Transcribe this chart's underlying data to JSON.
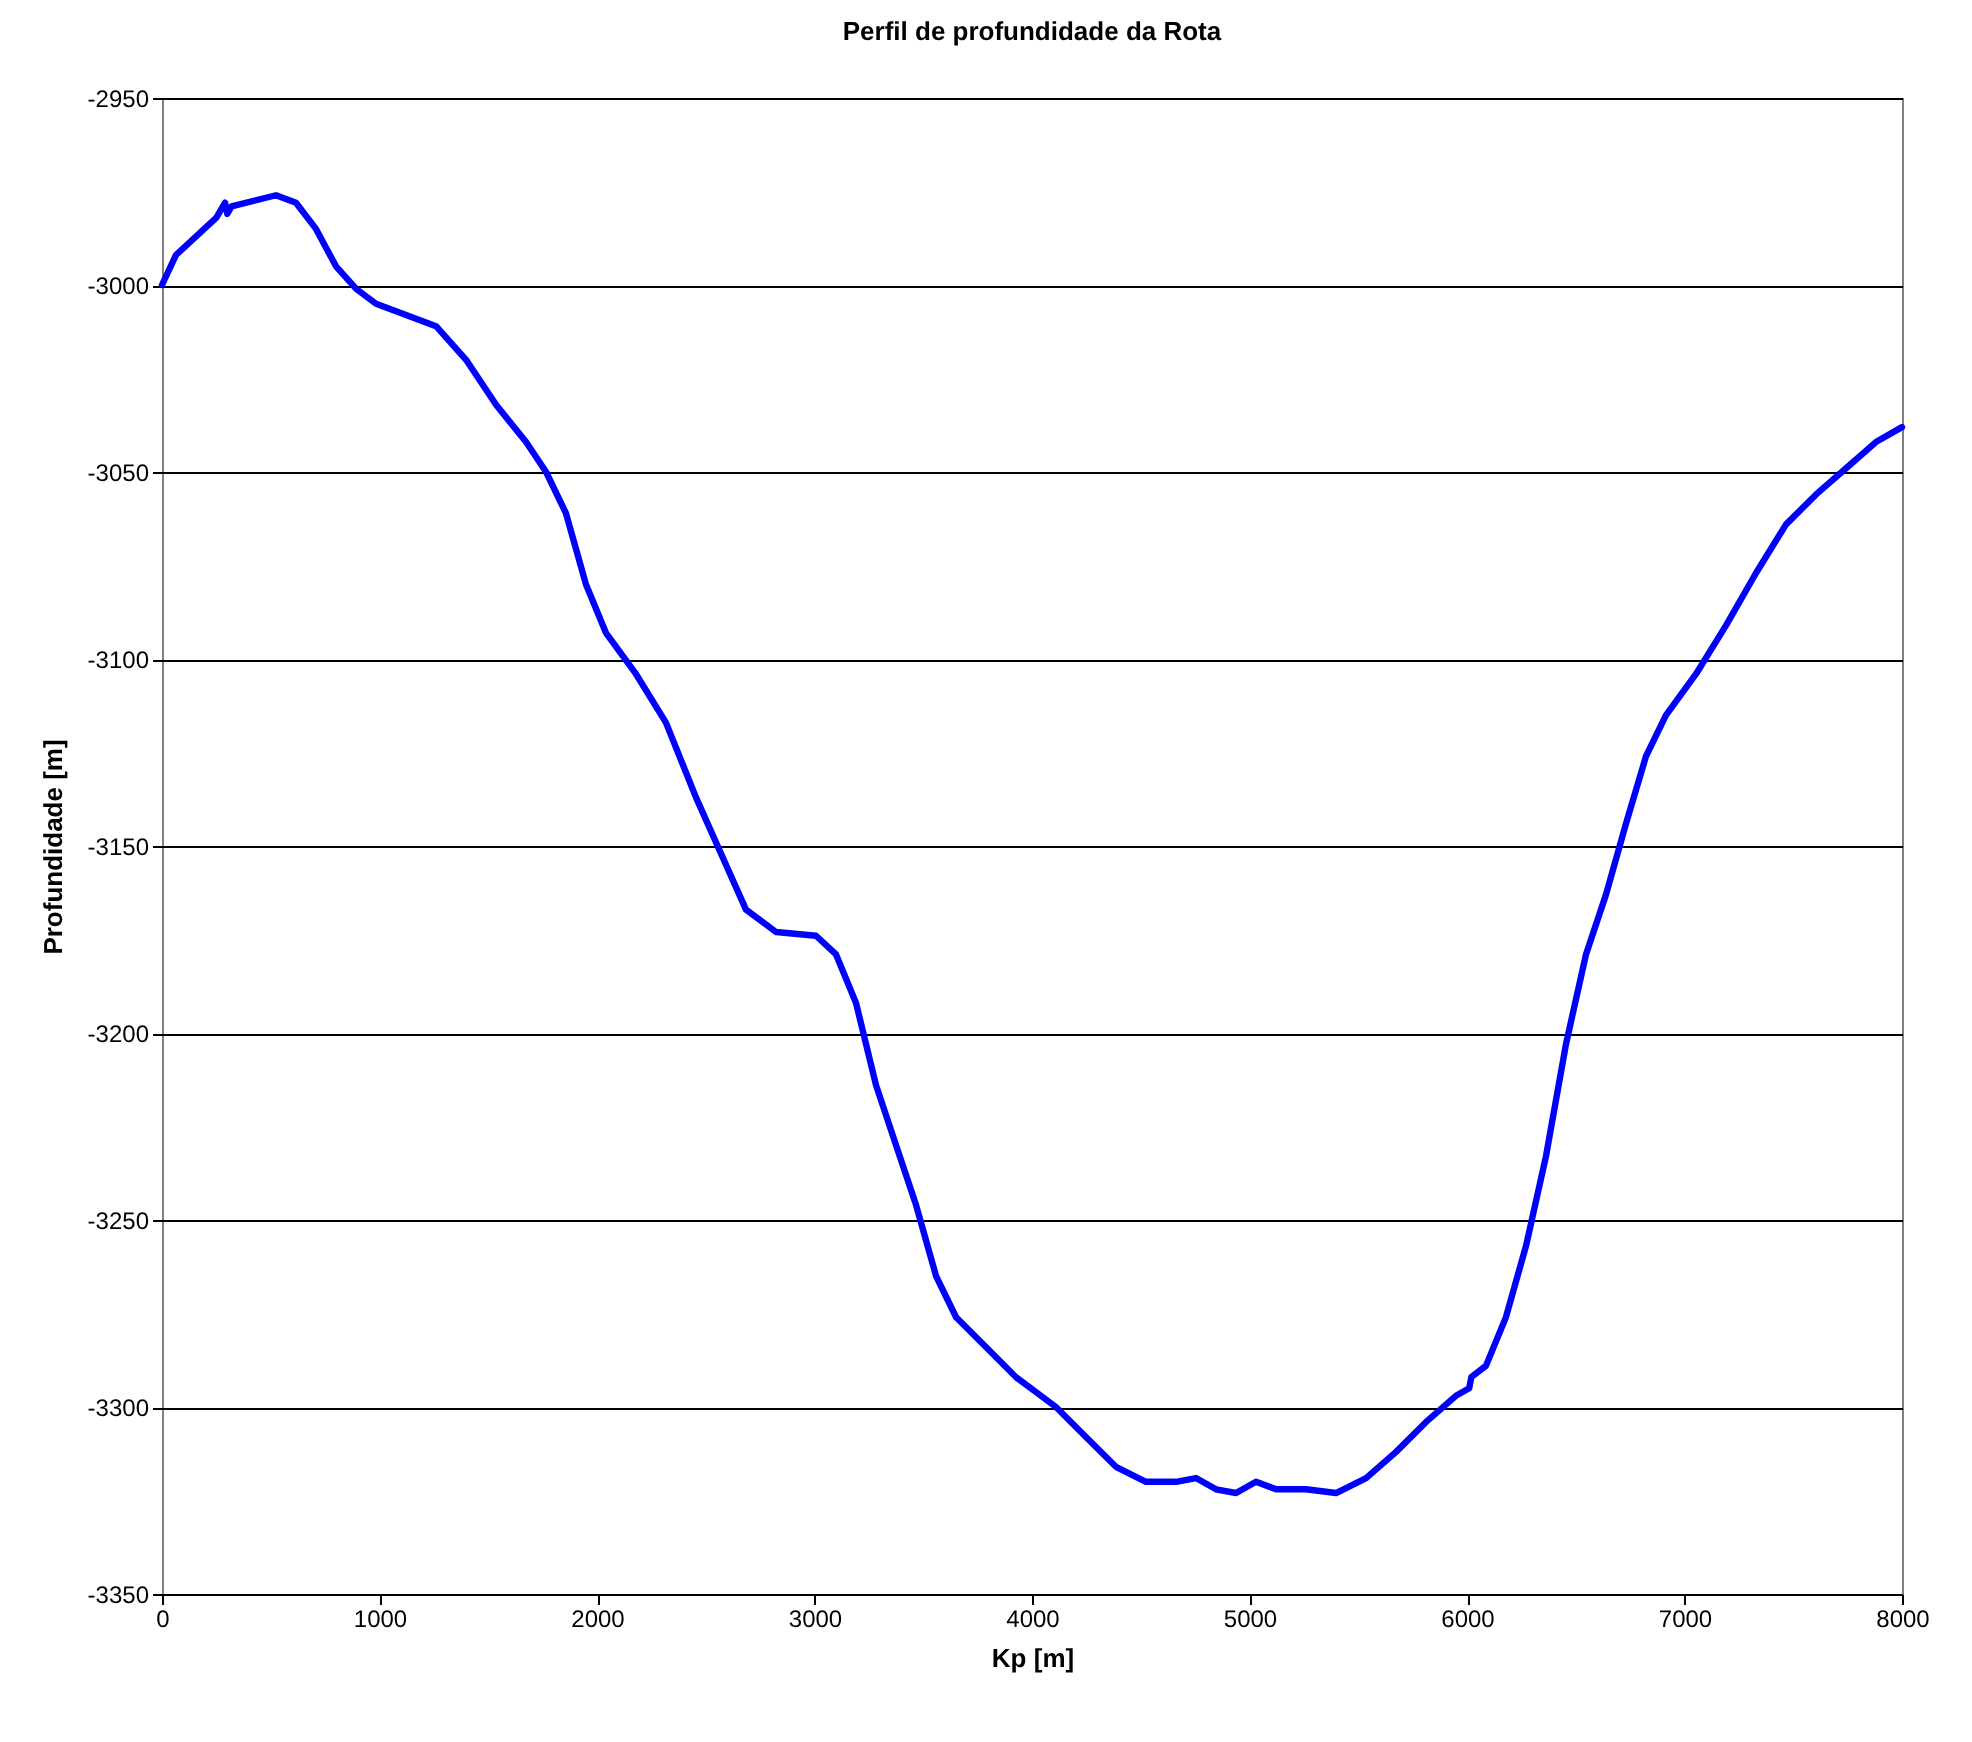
{
  "chart_data": {
    "type": "line",
    "title": "Perfil de profundidade da Rota",
    "xlabel": "Kp [m]",
    "ylabel": "Profundidade [m]",
    "x": [
      0,
      64,
      250,
      290,
      300,
      320,
      524,
      616,
      708,
      800,
      892,
      984,
      1122,
      1260,
      1398,
      1536,
      1674,
      1766,
      1857,
      1949,
      2041,
      2179,
      2317,
      2455,
      2593,
      2685,
      2823,
      3007,
      3099,
      3191,
      3283,
      3375,
      3467,
      3559,
      3651,
      3789,
      3926,
      4018,
      4110,
      4248,
      4386,
      4524,
      4662,
      4754,
      4846,
      4938,
      5030,
      5122,
      5260,
      5398,
      5536,
      5674,
      5812,
      5949,
      6010,
      6020,
      6087,
      6179,
      6271,
      6363,
      6455,
      6547,
      6639,
      6731,
      6823,
      6915,
      7053,
      7191,
      7329,
      7467,
      7605,
      7743,
      7880,
      8000
    ],
    "series": [
      {
        "color": "#0000ff",
        "values": [
          -3000,
          -2992,
          -2982,
          -2978,
          -2981,
          -2979,
          -2976,
          -2978,
          -2985,
          -2995,
          -3001,
          -3005,
          -3008,
          -3011,
          -3020,
          -3032,
          -3042,
          -3050,
          -3061,
          -3080,
          -3093,
          -3104,
          -3117,
          -3137,
          -3155,
          -3167,
          -3173,
          -3174,
          -3179,
          -3192,
          -3214,
          -3230,
          -3246,
          -3265,
          -3276,
          -3284,
          -3292,
          -3296,
          -3300,
          -3308,
          -3316,
          -3320,
          -3320,
          -3319,
          -3322,
          -3323,
          -3320,
          -3322,
          -3322,
          -3323,
          -3319,
          -3312,
          -3304,
          -3297,
          -3295,
          -3292,
          -3289,
          -3276,
          -3257,
          -3233,
          -3203,
          -3179,
          -3163,
          -3144,
          -3126,
          -3115,
          -3104,
          -3091,
          -3077,
          -3064,
          -3056,
          -3049,
          -3042,
          -3038
        ]
      }
    ],
    "xlim": [
      0,
      8000
    ],
    "xticks": [
      0,
      1000,
      2000,
      3000,
      4000,
      5000,
      6000,
      7000,
      8000
    ],
    "ylim": [
      -3350,
      -2950
    ],
    "yticks": [
      -3350,
      -3300,
      -3250,
      -3200,
      -3150,
      -3100,
      -3050,
      -3000,
      -2950
    ],
    "grid": "y",
    "marker": "none",
    "line_style": "solid"
  }
}
